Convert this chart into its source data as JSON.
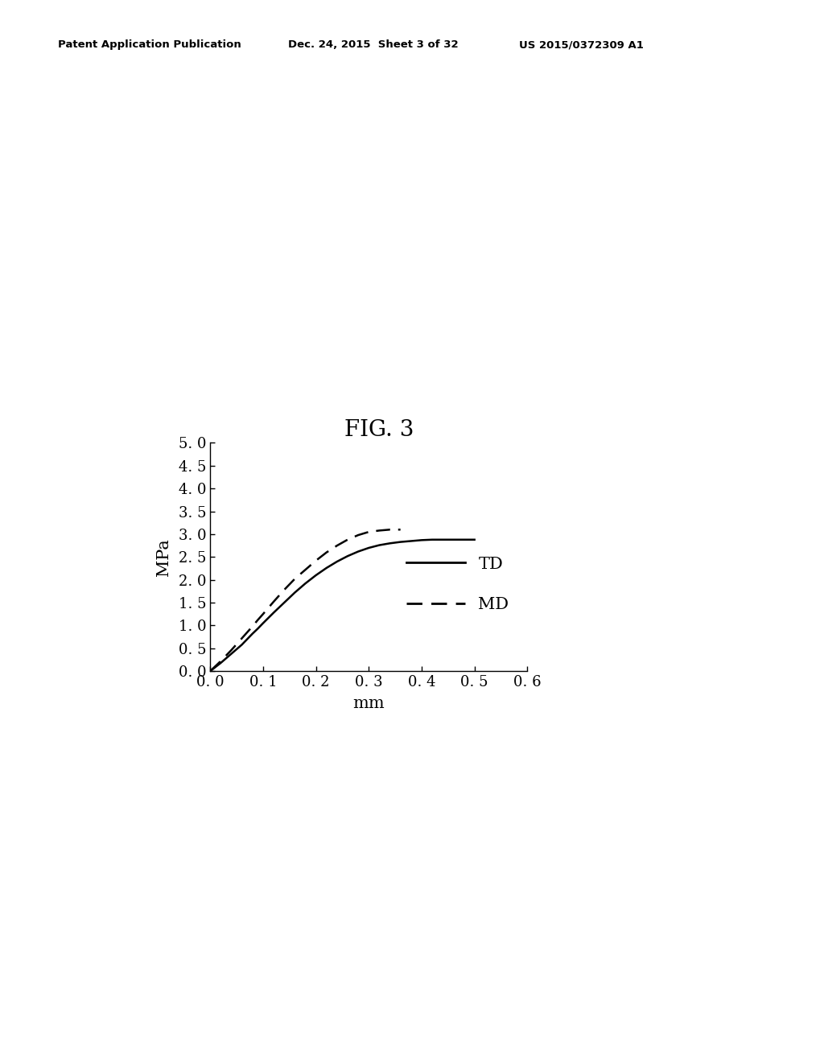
{
  "title": "FIG. 3",
  "xlabel": "mm",
  "ylabel": "MPa",
  "xlim": [
    0.0,
    0.6
  ],
  "ylim": [
    0.0,
    5.0
  ],
  "xticks": [
    0.0,
    0.1,
    0.2,
    0.3,
    0.4,
    0.5,
    0.6
  ],
  "yticks": [
    0.0,
    0.5,
    1.0,
    1.5,
    2.0,
    2.5,
    3.0,
    3.5,
    4.0,
    4.5,
    5.0
  ],
  "xtick_labels": [
    "0. 0",
    "0. 1",
    "0. 2",
    "0. 3",
    "0. 4",
    "0. 5",
    "0. 6"
  ],
  "ytick_labels": [
    "0. 0",
    "0. 5",
    "1. 0",
    "1. 5",
    "2. 0",
    "2. 5",
    "3. 0",
    "3. 5",
    "4. 0",
    "4. 5",
    "5. 0"
  ],
  "background_color": "#ffffff",
  "line_color": "#000000",
  "header_left": "Patent Application Publication",
  "header_center": "Dec. 24, 2015  Sheet 3 of 32",
  "header_right": "US 2015/0372309 A1",
  "td_x": [
    0.0,
    0.01,
    0.02,
    0.03,
    0.04,
    0.05,
    0.06,
    0.07,
    0.08,
    0.09,
    0.1,
    0.12,
    0.14,
    0.16,
    0.18,
    0.2,
    0.22,
    0.24,
    0.26,
    0.28,
    0.3,
    0.32,
    0.34,
    0.36,
    0.38,
    0.4,
    0.42,
    0.44,
    0.46,
    0.48,
    0.5
  ],
  "td_y": [
    0.0,
    0.09,
    0.18,
    0.28,
    0.38,
    0.48,
    0.58,
    0.7,
    0.82,
    0.93,
    1.05,
    1.28,
    1.5,
    1.72,
    1.92,
    2.1,
    2.26,
    2.4,
    2.52,
    2.62,
    2.7,
    2.76,
    2.8,
    2.83,
    2.85,
    2.87,
    2.88,
    2.88,
    2.88,
    2.88,
    2.88
  ],
  "md_x": [
    0.0,
    0.01,
    0.02,
    0.03,
    0.04,
    0.05,
    0.06,
    0.07,
    0.08,
    0.09,
    0.1,
    0.12,
    0.14,
    0.16,
    0.18,
    0.2,
    0.22,
    0.24,
    0.26,
    0.28,
    0.3,
    0.32,
    0.34,
    0.36
  ],
  "md_y": [
    0.0,
    0.11,
    0.22,
    0.34,
    0.46,
    0.59,
    0.72,
    0.85,
    0.98,
    1.12,
    1.25,
    1.52,
    1.78,
    2.02,
    2.22,
    2.42,
    2.6,
    2.75,
    2.88,
    2.98,
    3.05,
    3.08,
    3.1,
    3.1
  ],
  "legend_td_label": "TD",
  "legend_md_label": "MD",
  "title_fontsize": 20,
  "axis_label_fontsize": 15,
  "tick_fontsize": 13,
  "legend_fontsize": 15
}
